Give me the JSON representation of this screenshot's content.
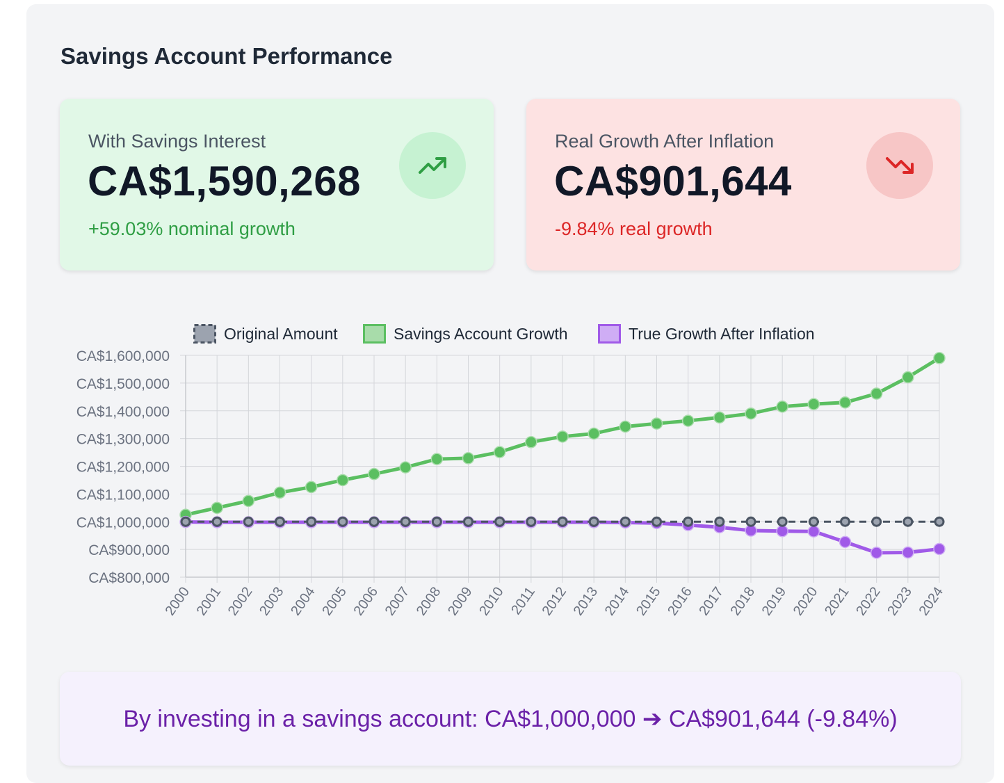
{
  "page": {
    "title": "Savings Account Performance"
  },
  "cards": {
    "nominal": {
      "label": "With Savings Interest",
      "value": "CA$1,590,268",
      "sub": "+59.03% nominal growth",
      "icon": "trending-up-icon",
      "accent": "#2f9e44"
    },
    "real": {
      "label": "Real Growth After Inflation",
      "value": "CA$901,644",
      "sub": "-9.84% real growth",
      "icon": "trending-down-icon",
      "accent": "#dc2626"
    }
  },
  "summary": {
    "text": "By investing in a savings account: CA$1,000,000 ➔ CA$901,644 (-9.84%)"
  },
  "chart_data": {
    "type": "line",
    "x": [
      "2000",
      "2001",
      "2002",
      "2003",
      "2004",
      "2005",
      "2006",
      "2007",
      "2008",
      "2009",
      "2010",
      "2011",
      "2012",
      "2013",
      "2014",
      "2015",
      "2016",
      "2017",
      "2018",
      "2019",
      "2020",
      "2021",
      "2022",
      "2023",
      "2024"
    ],
    "ylim": [
      800000,
      1600000
    ],
    "yticks": [
      {
        "value": 1600000,
        "label": "CA$1,600,000"
      },
      {
        "value": 1500000,
        "label": "CA$1,500,000"
      },
      {
        "value": 1400000,
        "label": "CA$1,400,000"
      },
      {
        "value": 1300000,
        "label": "CA$1,300,000"
      },
      {
        "value": 1200000,
        "label": "CA$1,200,000"
      },
      {
        "value": 1100000,
        "label": "CA$1,100,000"
      },
      {
        "value": 1000000,
        "label": "CA$1,000,000"
      },
      {
        "value": 900000,
        "label": "CA$900,000"
      },
      {
        "value": 800000,
        "label": "CA$800,000"
      }
    ],
    "grid": true,
    "legend_position": "top",
    "series": [
      {
        "name": "Original Amount",
        "color": "#4b5563",
        "fill": "#9ca3af",
        "dashed": true,
        "values": [
          1000000,
          1000000,
          1000000,
          1000000,
          1000000,
          1000000,
          1000000,
          1000000,
          1000000,
          1000000,
          1000000,
          1000000,
          1000000,
          1000000,
          1000000,
          1000000,
          1000000,
          1000000,
          1000000,
          1000000,
          1000000,
          1000000,
          1000000,
          1000000,
          1000000
        ]
      },
      {
        "name": "Savings Account Growth",
        "color": "#5bbf61",
        "fill": "#a8dcaa",
        "dashed": false,
        "values": [
          1025000,
          1050000,
          1075000,
          1105000,
          1125000,
          1150000,
          1172000,
          1196000,
          1226000,
          1229000,
          1251000,
          1287000,
          1307000,
          1318000,
          1343000,
          1354000,
          1364000,
          1376000,
          1390000,
          1415000,
          1424000,
          1430000,
          1462000,
          1521000,
          1590268
        ]
      },
      {
        "name": "True Growth After Inflation",
        "color": "#a05ae8",
        "fill": "#cfadf5",
        "dashed": false,
        "values": [
          999000,
          998000,
          998000,
          998000,
          998000,
          998000,
          998000,
          998000,
          998000,
          998000,
          998000,
          998000,
          998000,
          998000,
          997000,
          995000,
          988000,
          980000,
          968000,
          966000,
          965000,
          927000,
          888000,
          889000,
          901644
        ]
      }
    ]
  }
}
